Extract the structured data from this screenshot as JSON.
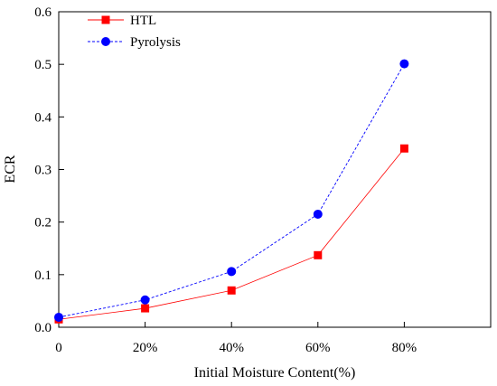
{
  "chart_data": {
    "type": "line",
    "xlabel": "Initial Moisture Content(%)",
    "ylabel": "ECR",
    "x_ticks": [
      "0",
      "20%",
      "40%",
      "60%",
      "80%"
    ],
    "y_ticks": [
      "0.0",
      "0.1",
      "0.2",
      "0.3",
      "0.4",
      "0.5",
      "0.6"
    ],
    "xlim": [
      0,
      100
    ],
    "ylim": [
      0,
      0.6
    ],
    "grid": false,
    "legend_position": "top-left",
    "x": [
      0,
      20,
      40,
      60,
      80
    ],
    "series": [
      {
        "name": "HTL",
        "values": [
          0.015,
          0.036,
          0.07,
          0.137,
          0.34
        ],
        "color": "#ff0000",
        "marker": "square",
        "line": "solid"
      },
      {
        "name": "Pyrolysis",
        "values": [
          0.019,
          0.052,
          0.106,
          0.215,
          0.501
        ],
        "color": "#0000ff",
        "marker": "circle",
        "line": "dashed"
      }
    ]
  }
}
